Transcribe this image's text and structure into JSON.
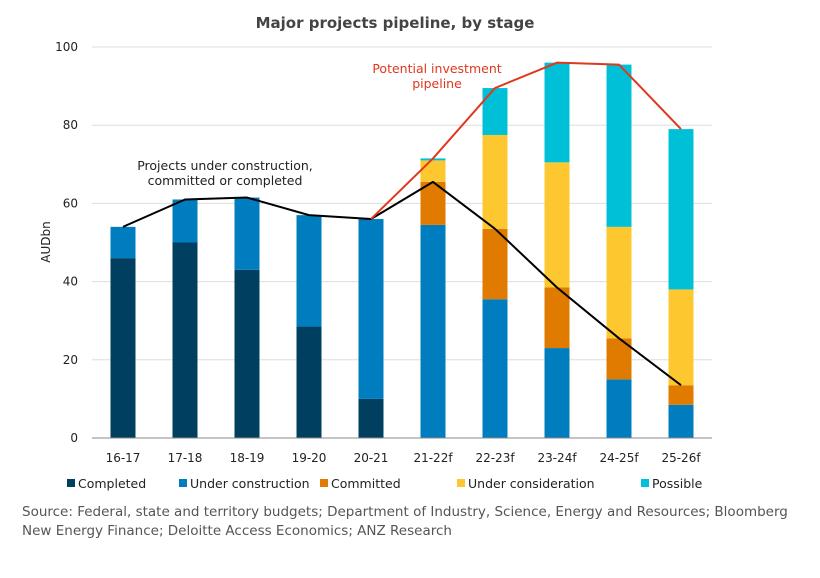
{
  "chart_data": {
    "type": "bar",
    "stacked": true,
    "title": "Major projects pipeline, by stage",
    "ylabel": "AUDbn",
    "ylim": [
      0,
      100
    ],
    "yticks": [
      0,
      20,
      40,
      60,
      80,
      100
    ],
    "grid": true,
    "legend_position": "bottom",
    "categories": [
      "16-17",
      "17-18",
      "18-19",
      "19-20",
      "20-21",
      "21-22f",
      "22-23f",
      "23-24f",
      "24-25f",
      "25-26f"
    ],
    "series": [
      {
        "name": "Completed",
        "color": "#003f5f",
        "values": [
          46,
          50,
          43,
          28.5,
          10,
          0,
          0,
          0,
          0,
          0
        ]
      },
      {
        "name": "Under construction",
        "color": "#007dbf",
        "values": [
          8,
          11,
          18.5,
          28.5,
          46,
          54.5,
          35.5,
          23,
          15,
          8.5
        ]
      },
      {
        "name": "Committed",
        "color": "#e07b00",
        "values": [
          0,
          0,
          0,
          0,
          0,
          11,
          18,
          15.5,
          10.5,
          5
        ]
      },
      {
        "name": "Under consideration",
        "color": "#fdc82f",
        "values": [
          0,
          0,
          0,
          0,
          0,
          5.5,
          24,
          32,
          28.5,
          24.5
        ]
      },
      {
        "name": "Possible",
        "color": "#00c0d8",
        "values": [
          0,
          0,
          0,
          0,
          0,
          0.5,
          12,
          25.5,
          41.5,
          41
        ]
      }
    ],
    "lines": [
      {
        "label": "Projects under construction, committed or completed",
        "color": "#000000",
        "values": [
          54,
          61,
          61.5,
          57,
          56,
          65.5,
          53.5,
          38.5,
          25.5,
          13.5
        ]
      },
      {
        "label": "Potential investment pipeline",
        "color": "#e0381c",
        "values": [
          null,
          null,
          null,
          null,
          56,
          71.5,
          89.5,
          96,
          95.5,
          79
        ]
      }
    ],
    "annotations": [
      {
        "lines": [
          "Projects under construction,",
          "committed or completed"
        ],
        "color": "#222222"
      },
      {
        "lines": [
          "Potential investment",
          "pipeline"
        ],
        "color": "#e0381c"
      }
    ]
  },
  "source": "Source: Federal, state and territory budgets; Department of Industry, Science, Energy and Resources; Bloomberg New Energy Finance; Deloitte Access Economics; ANZ Research"
}
